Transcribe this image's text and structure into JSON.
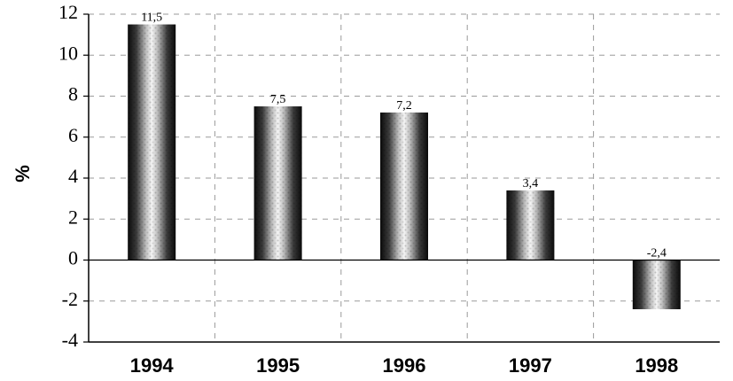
{
  "chart_data": {
    "type": "bar",
    "categories": [
      "1994",
      "1995",
      "1996",
      "1997",
      "1998"
    ],
    "values": [
      11.5,
      7.5,
      7.2,
      3.4,
      -2.4
    ],
    "data_labels": [
      "11,5",
      "7,5",
      "7,2",
      "3,4",
      "-2,4"
    ],
    "ylabel": "%",
    "ylim": [
      -4,
      12
    ],
    "yticks": [
      "12",
      "10",
      "8",
      "6",
      "4",
      "2",
      "0",
      "-2",
      "-4"
    ],
    "ytick_values": [
      12,
      10,
      8,
      6,
      4,
      2,
      0,
      -2,
      -4
    ],
    "grid": true,
    "colors": {
      "bar_dark": "#111111",
      "bar_light": "#f2f2f2",
      "grid": "#9a9a9a",
      "axis": "#000000"
    }
  }
}
